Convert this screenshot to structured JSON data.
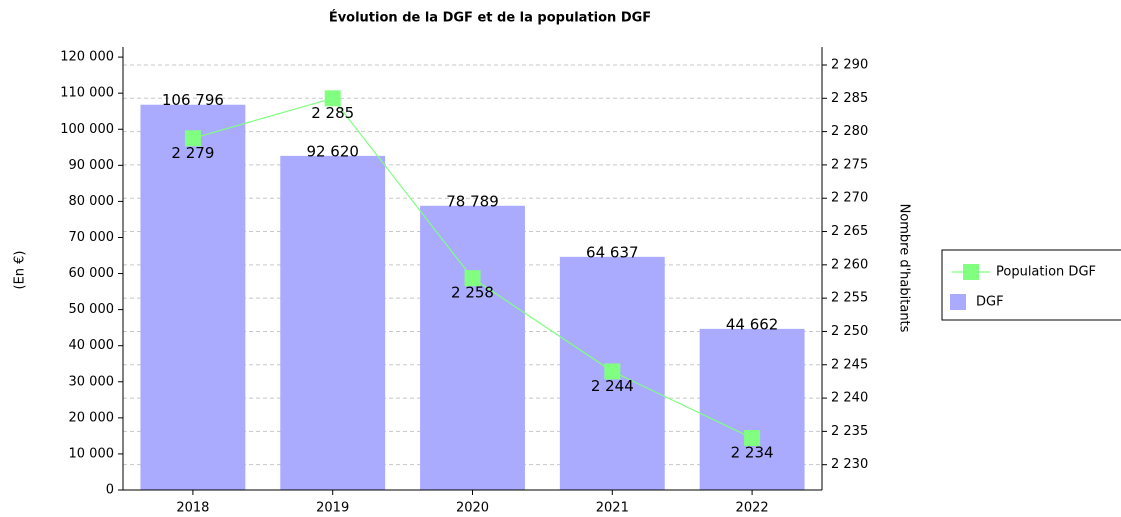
{
  "chart_data": {
    "type": "bar",
    "title": "Évolution de la DGF et de la population DGF",
    "ylabel": "(En €)",
    "y2label": "Nombre d'habitants",
    "categories": [
      "2018",
      "2019",
      "2020",
      "2021",
      "2022"
    ],
    "series": [
      {
        "name": "DGF",
        "type": "bar",
        "color": "#aaaaff",
        "values": [
          106796,
          92620,
          78789,
          64637,
          44662
        ],
        "value_labels": [
          "106 796",
          "92 620",
          "78 789",
          "64 637",
          "44 662"
        ]
      },
      {
        "name": "Population DGF",
        "type": "line",
        "axis": "y2",
        "color": "#80ff80",
        "values": [
          2279,
          2285,
          2258,
          2244,
          2234
        ],
        "value_labels": [
          "2 279",
          "2 285",
          "2 258",
          "2 244",
          "2 234"
        ]
      }
    ],
    "ylim": [
      0,
      122800
    ],
    "yticks": [
      0,
      {
        "value": 10000,
        "label": "10 000"
      },
      {
        "value": 20000,
        "label": "20 000"
      },
      {
        "value": 30000,
        "label": "30 000"
      },
      {
        "value": 40000,
        "label": "40 000"
      },
      {
        "value": 50000,
        "label": "50 000"
      },
      {
        "value": 60000,
        "label": "60 000"
      },
      {
        "value": 70000,
        "label": "70 000"
      },
      {
        "value": 80000,
        "label": "80 000"
      },
      {
        "value": 90000,
        "label": "90 000"
      },
      {
        "value": 100000,
        "label": "100 000"
      },
      {
        "value": 110000,
        "label": "110 000"
      },
      {
        "value": 120000,
        "label": "120 000"
      }
    ],
    "y2lim": [
      2226.2,
      2292.7
    ],
    "y2ticks": [
      {
        "value": 2230,
        "label": "2 230"
      },
      {
        "value": 2235,
        "label": "2 235"
      },
      {
        "value": 2240,
        "label": "2 240"
      },
      {
        "value": 2245,
        "label": "2 245"
      },
      {
        "value": 2250,
        "label": "2 250"
      },
      {
        "value": 2255,
        "label": "2 255"
      },
      {
        "value": 2260,
        "label": "2 260"
      },
      {
        "value": 2265,
        "label": "2 265"
      },
      {
        "value": 2270,
        "label": "2 270"
      },
      {
        "value": 2275,
        "label": "2 275"
      },
      {
        "value": 2280,
        "label": "2 280"
      },
      {
        "value": 2285,
        "label": "2 285"
      },
      {
        "value": 2290,
        "label": "2 290"
      }
    ],
    "grid": true,
    "legend": "right"
  }
}
